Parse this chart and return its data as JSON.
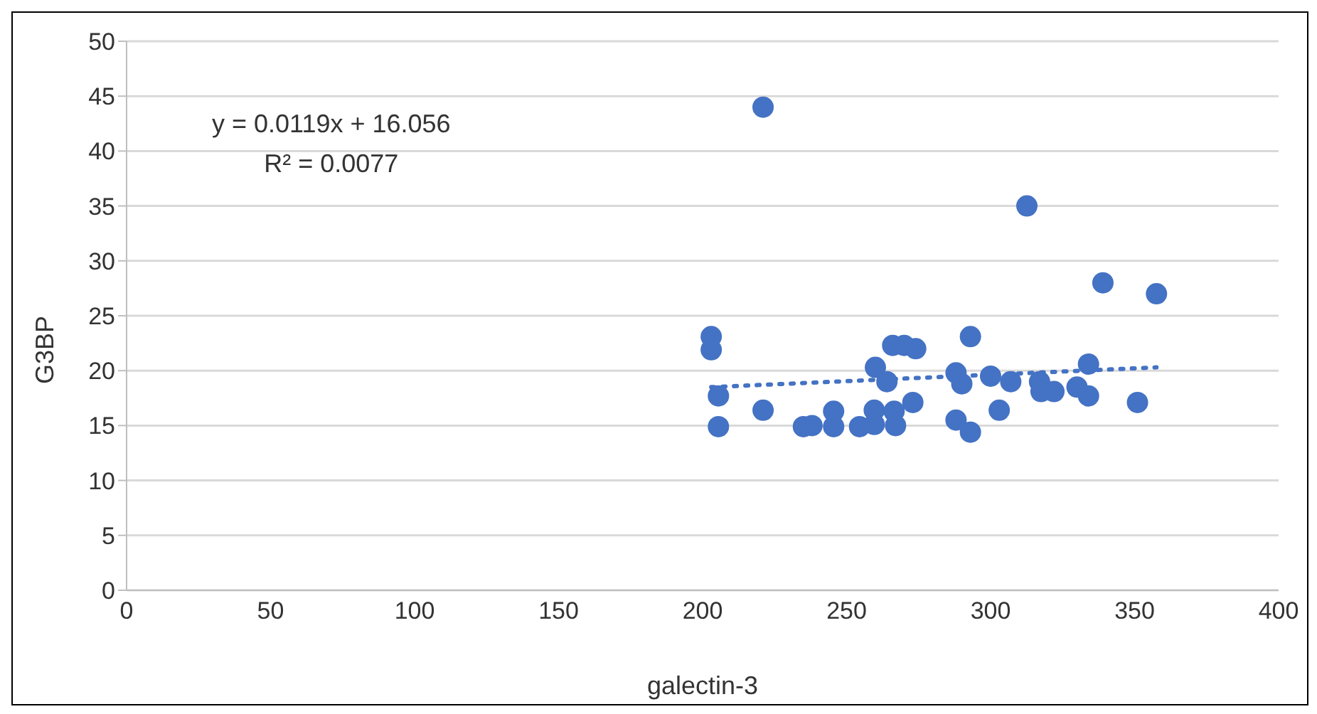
{
  "chart_data": {
    "type": "scatter",
    "xlabel": "galectin-3",
    "ylabel": "G3BP",
    "xlim": [
      0,
      400
    ],
    "xticks": [
      0,
      50,
      100,
      150,
      200,
      250,
      300,
      350,
      400
    ],
    "ylim": [
      0,
      50
    ],
    "yticks": [
      0,
      5,
      10,
      15,
      20,
      25,
      30,
      35,
      40,
      45,
      50
    ],
    "grid": "y",
    "marker": "circle",
    "annotations": [
      "y = 0.0119x + 16.056",
      "R² = 0.0077"
    ],
    "series": [
      {
        "color": "#4472c4",
        "x": [
          203,
          203,
          205.5,
          205.5,
          221,
          221,
          235,
          238,
          245.5,
          245.5,
          254.5,
          259.6,
          259.6,
          260,
          264,
          266,
          270,
          274,
          266.5,
          267,
          273,
          288,
          290,
          288,
          293,
          293,
          300,
          303,
          307,
          312.6,
          317,
          317.5,
          322,
          330,
          334,
          334,
          339,
          351,
          357.6
        ],
        "values": [
          23.1,
          21.9,
          17.7,
          14.9,
          16.4,
          44,
          14.9,
          15,
          16.3,
          14.9,
          14.9,
          16.4,
          15.1,
          20.3,
          19,
          22.3,
          22.3,
          22,
          16.3,
          15,
          17.1,
          19.8,
          18.8,
          15.5,
          14.4,
          23.1,
          19.5,
          16.4,
          19,
          35,
          19,
          18.1,
          18.1,
          18.5,
          20.6,
          17.7,
          28,
          17.1,
          27
        ]
      },
      {
        "type": "line",
        "color": "#4472c4",
        "line_style": "dotted",
        "marker": "none",
        "x": [
          203,
          357.6
        ],
        "values": [
          18.5,
          20.3
        ]
      }
    ]
  }
}
